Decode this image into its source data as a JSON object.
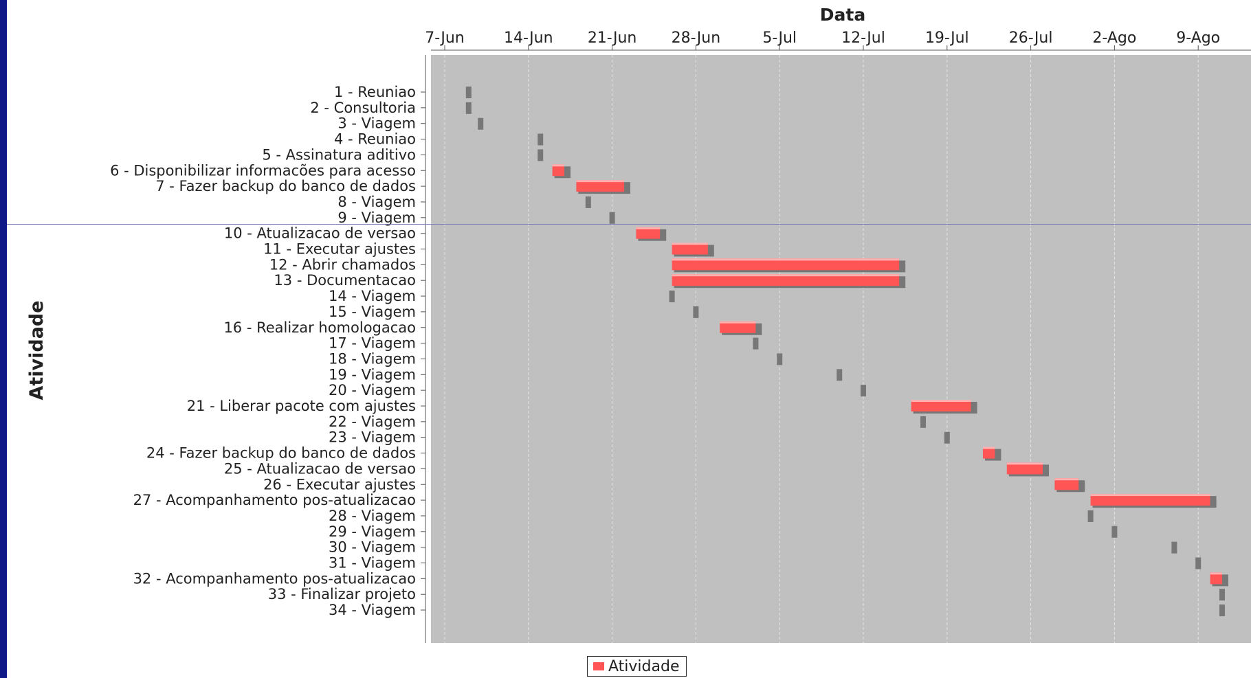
{
  "colors": {
    "frame": "#0f1a88",
    "plot_bg": "#c0c0c0",
    "bar": "#ff5555",
    "bar_shadow": "#777777",
    "milestone": "#777777",
    "grid": "#e4e4e4",
    "text": "#222222"
  },
  "chart_data": {
    "type": "gantt",
    "xlabel": "Data",
    "ylabel": "Atividade",
    "x_axis_position": "top",
    "x_range": [
      "2011-06-05",
      "2011-08-14"
    ],
    "x_ticks": [
      {
        "date": "2011-06-07",
        "label": "7-Jun"
      },
      {
        "date": "2011-06-14",
        "label": "14-Jun"
      },
      {
        "date": "2011-06-21",
        "label": "21-Jun"
      },
      {
        "date": "2011-06-28",
        "label": "28-Jun"
      },
      {
        "date": "2011-07-05",
        "label": "5-Jul"
      },
      {
        "date": "2011-07-12",
        "label": "12-Jul"
      },
      {
        "date": "2011-07-19",
        "label": "19-Jul"
      },
      {
        "date": "2011-07-26",
        "label": "26-Jul"
      },
      {
        "date": "2011-08-02",
        "label": "2-Ago"
      },
      {
        "date": "2011-08-09",
        "label": "9-Ago"
      }
    ],
    "grid": true,
    "legend": {
      "placement": "bottom-center",
      "entries": [
        "Atividade"
      ]
    },
    "tasks": [
      {
        "label": "1 - Reuniao",
        "start": "2011-06-09",
        "end": "2011-06-09"
      },
      {
        "label": "2 - Consultoria",
        "start": "2011-06-09",
        "end": "2011-06-09"
      },
      {
        "label": "3 - Viagem",
        "start": "2011-06-10",
        "end": "2011-06-10"
      },
      {
        "label": "4 - Reuniao",
        "start": "2011-06-15",
        "end": "2011-06-15"
      },
      {
        "label": "5 - Assinatura aditivo",
        "start": "2011-06-15",
        "end": "2011-06-15"
      },
      {
        "label": "6 - Disponibilizar informacões para acesso",
        "start": "2011-06-16",
        "end": "2011-06-17"
      },
      {
        "label": "7 - Fazer backup do banco de dados",
        "start": "2011-06-18",
        "end": "2011-06-22"
      },
      {
        "label": "8 - Viagem",
        "start": "2011-06-19",
        "end": "2011-06-19"
      },
      {
        "label": "9 - Viagem",
        "start": "2011-06-21",
        "end": "2011-06-21"
      },
      {
        "label": "10 - Atualizacao de versao",
        "start": "2011-06-23",
        "end": "2011-06-25"
      },
      {
        "label": "11 - Executar ajustes",
        "start": "2011-06-26",
        "end": "2011-06-29"
      },
      {
        "label": "12 - Abrir chamados",
        "start": "2011-06-26",
        "end": "2011-07-15"
      },
      {
        "label": "13 - Documentacao",
        "start": "2011-06-26",
        "end": "2011-07-15"
      },
      {
        "label": "14 - Viagem",
        "start": "2011-06-26",
        "end": "2011-06-26"
      },
      {
        "label": "15 - Viagem",
        "start": "2011-06-28",
        "end": "2011-06-28"
      },
      {
        "label": "16 - Realizar homologacao",
        "start": "2011-06-30",
        "end": "2011-07-03"
      },
      {
        "label": "17 - Viagem",
        "start": "2011-07-03",
        "end": "2011-07-03"
      },
      {
        "label": "18 - Viagem",
        "start": "2011-07-05",
        "end": "2011-07-05"
      },
      {
        "label": "19 - Viagem",
        "start": "2011-07-10",
        "end": "2011-07-10"
      },
      {
        "label": "20 - Viagem",
        "start": "2011-07-12",
        "end": "2011-07-12"
      },
      {
        "label": "21 - Liberar pacote com ajustes",
        "start": "2011-07-16",
        "end": "2011-07-21"
      },
      {
        "label": "22 - Viagem",
        "start": "2011-07-17",
        "end": "2011-07-17"
      },
      {
        "label": "23 - Viagem",
        "start": "2011-07-19",
        "end": "2011-07-19"
      },
      {
        "label": "24 - Fazer backup do banco de dados",
        "start": "2011-07-22",
        "end": "2011-07-23"
      },
      {
        "label": "25 - Atualizacao de versao",
        "start": "2011-07-24",
        "end": "2011-07-27"
      },
      {
        "label": "26 - Executar ajustes",
        "start": "2011-07-28",
        "end": "2011-07-30"
      },
      {
        "label": "27 - Acompanhamento pos-atualizacao",
        "start": "2011-07-31",
        "end": "2011-08-10"
      },
      {
        "label": "28 - Viagem",
        "start": "2011-07-31",
        "end": "2011-07-31"
      },
      {
        "label": "29 - Viagem",
        "start": "2011-08-02",
        "end": "2011-08-02"
      },
      {
        "label": "30 - Viagem",
        "start": "2011-08-07",
        "end": "2011-08-07"
      },
      {
        "label": "31 - Viagem",
        "start": "2011-08-09",
        "end": "2011-08-09"
      },
      {
        "label": "32 - Acompanhamento pos-atualizacao",
        "start": "2011-08-10",
        "end": "2011-08-11"
      },
      {
        "label": "33 - Finalizar projeto",
        "start": "2011-08-11",
        "end": "2011-08-11"
      },
      {
        "label": "34 - Viagem",
        "start": "2011-08-11",
        "end": "2011-08-11"
      }
    ]
  }
}
